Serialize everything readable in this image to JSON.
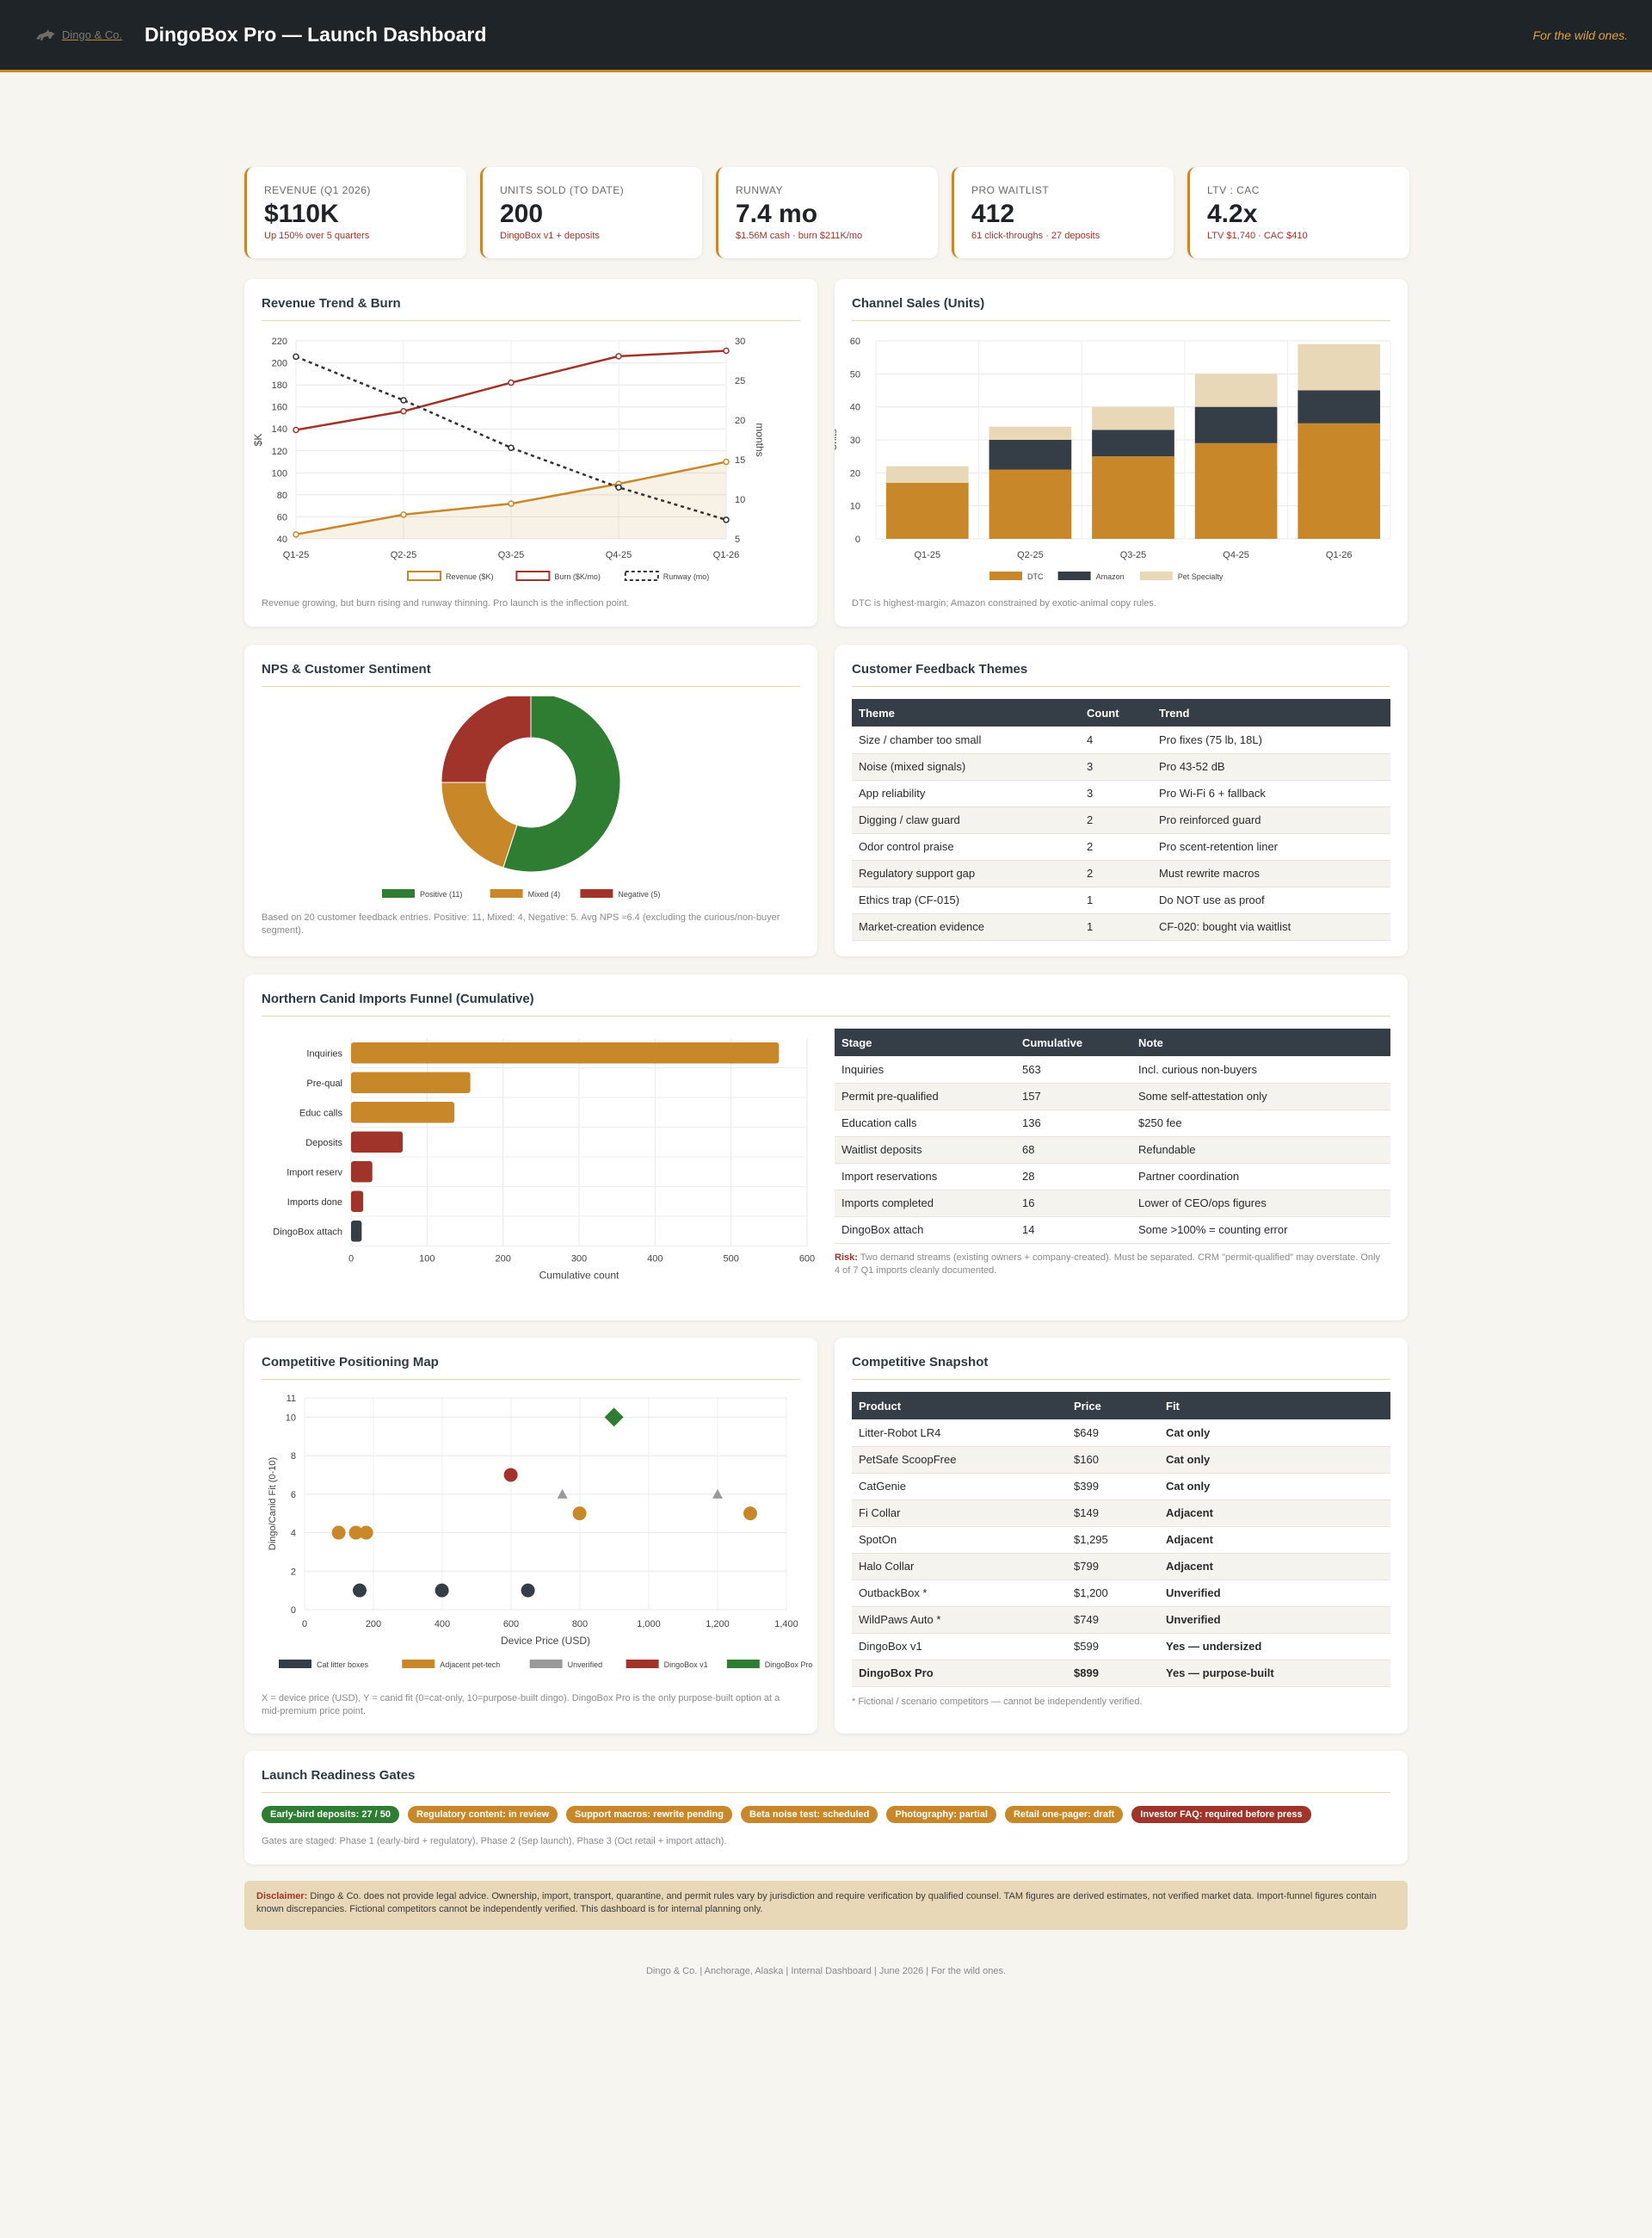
{
  "header": {
    "brand": "Dingo & Co.",
    "title": "DingoBox Pro — Launch Dashboard",
    "tagline": "For the wild ones."
  },
  "kpis": [
    {
      "label": "Revenue (Q1 2026)",
      "value": "$110K",
      "sub": "Up 150% over 5 quarters"
    },
    {
      "label": "Units Sold (to date)",
      "value": "200",
      "sub": "DingoBox v1 + deposits"
    },
    {
      "label": "Runway",
      "value": "7.4 mo",
      "sub": "$1.56M cash · burn $211K/mo"
    },
    {
      "label": "Pro Waitlist",
      "value": "412",
      "sub": "61 click-throughs · 27 deposits"
    },
    {
      "label": "LTV : CAC",
      "value": "4.2x",
      "sub": "LTV $1,740 · CAC $410"
    }
  ],
  "revenue_card": {
    "title": "Revenue Trend & Burn",
    "caption": "Revenue growing, but burn rising and runway thinning. Pro launch is the inflection point."
  },
  "channel_card": {
    "title": "Channel Sales (Units)",
    "caption": "DTC is highest-margin; Amazon constrained by exotic-animal copy rules."
  },
  "nps_card": {
    "title": "NPS & Customer Sentiment",
    "caption": "Based on 20 customer feedback entries. Positive: 11, Mixed: 4, Negative: 5. Avg NPS ≈6.4 (excluding the curious/non-buyer segment)."
  },
  "themes_card": {
    "title": "Customer Feedback Themes",
    "headers": [
      "Theme",
      "Count",
      "Trend"
    ],
    "rows": [
      [
        "Size / chamber too small",
        "4",
        "Pro fixes (75 lb, 18L)"
      ],
      [
        "Noise (mixed signals)",
        "3",
        "Pro 43-52 dB"
      ],
      [
        "App reliability",
        "3",
        "Pro Wi-Fi 6 + fallback"
      ],
      [
        "Digging / claw guard",
        "2",
        "Pro reinforced guard"
      ],
      [
        "Odor control praise",
        "2",
        "Pro scent-retention liner"
      ],
      [
        "Regulatory support gap",
        "2",
        "Must rewrite macros"
      ],
      [
        "Ethics trap (CF-015)",
        "1",
        "Do NOT use as proof"
      ],
      [
        "Market-creation evidence",
        "1",
        "CF-020: bought via waitlist"
      ]
    ]
  },
  "funnel_card": {
    "title": "Northern Canid Imports Funnel (Cumulative)",
    "headers": [
      "Stage",
      "Cumulative",
      "Note"
    ],
    "rows": [
      [
        "Inquiries",
        "563",
        "Incl. curious non-buyers"
      ],
      [
        "Permit pre-qualified",
        "157",
        "Some self-attestation only"
      ],
      [
        "Education calls",
        "136",
        "$250 fee"
      ],
      [
        "Waitlist deposits",
        "68",
        "Refundable"
      ],
      [
        "Import reservations",
        "28",
        "Partner coordination"
      ],
      [
        "Imports completed",
        "16",
        "Lower of CEO/ops figures"
      ],
      [
        "DingoBox attach",
        "14",
        "Some >100% = counting error"
      ]
    ],
    "risk_label": "Risk:",
    "risk_text": "Two demand streams (existing owners + company-created). Must be separated. CRM \"permit-qualified\" may overstate. Only 4 of 7 Q1 imports cleanly documented."
  },
  "map_card": {
    "title": "Competitive Positioning Map",
    "caption": "X = device price (USD), Y = canid fit (0=cat-only, 10=purpose-built dingo). DingoBox Pro is the only purpose-built option at a mid-premium price point."
  },
  "snapshot_card": {
    "title": "Competitive Snapshot",
    "headers": [
      "Product",
      "Price",
      "Fit"
    ],
    "rows": [
      {
        "product": "Litter-Robot LR4",
        "price": "$649",
        "fit": "Cat only",
        "cls": "fit-red"
      },
      {
        "product": "PetSafe ScoopFree",
        "price": "$160",
        "fit": "Cat only",
        "cls": "fit-red"
      },
      {
        "product": "CatGenie",
        "price": "$399",
        "fit": "Cat only",
        "cls": "fit-red"
      },
      {
        "product": "Fi Collar",
        "price": "$149",
        "fit": "Adjacent",
        "cls": "fit-or"
      },
      {
        "product": "SpotOn",
        "price": "$1,295",
        "fit": "Adjacent",
        "cls": "fit-or"
      },
      {
        "product": "Halo Collar",
        "price": "$799",
        "fit": "Adjacent",
        "cls": "fit-or"
      },
      {
        "product": "OutbackBox *",
        "price": "$1,200",
        "fit": "Unverified",
        "cls": "fit-or"
      },
      {
        "product": "WildPaws Auto *",
        "price": "$749",
        "fit": "Unverified",
        "cls": "fit-or"
      },
      {
        "product": "DingoBox v1",
        "price": "$599",
        "fit": "Yes — undersized",
        "cls": "fit-gr"
      },
      {
        "product": "DingoBox Pro",
        "price": "$899",
        "fit": "Yes — purpose-built",
        "cls": "fit-gr",
        "bold": true
      }
    ],
    "footnote": "* Fictional / scenario competitors — cannot be independently verified."
  },
  "gates_card": {
    "title": "Launch Readiness Gates",
    "pills": [
      {
        "text": "Early-bird deposits: 27 / 50",
        "color": "#2e7d32"
      },
      {
        "text": "Regulatory content: in review",
        "color": "#c8882a"
      },
      {
        "text": "Support macros: rewrite pending",
        "color": "#c8882a"
      },
      {
        "text": "Beta noise test: scheduled",
        "color": "#c8882a"
      },
      {
        "text": "Photography: partial",
        "color": "#c8882a"
      },
      {
        "text": "Retail one-pager: draft",
        "color": "#c8882a"
      },
      {
        "text": "Investor FAQ: required before press",
        "color": "#a0342a"
      }
    ],
    "caption": "Gates are staged: Phase 1 (early-bird + regulatory), Phase 2 (Sep launch), Phase 3 (Oct retail + import attach)."
  },
  "disclaimer": {
    "label": "Disclaimer:",
    "text": "Dingo & Co. does not provide legal advice. Ownership, import, transport, quarantine, and permit rules vary by jurisdiction and require verification by qualified counsel. TAM figures are derived estimates, not verified market data. Import-funnel figures contain known discrepancies. Fictional competitors cannot be independently verified. This dashboard is for internal planning only."
  },
  "footer": "Dingo & Co. | Anchorage, Alaska | Internal Dashboard | June 2026 | For the wild ones.",
  "colors": {
    "accent": "#c8882a",
    "red": "#a0342a",
    "dark": "#353e47",
    "beige": "#e8d8b8",
    "green": "#2e7d32",
    "gray": "#999999"
  },
  "chart_data": [
    {
      "type": "line",
      "categories": [
        "Q1-25",
        "Q2-25",
        "Q3-25",
        "Q4-25",
        "Q1-26"
      ],
      "ylabel": "$K",
      "y2label": "months",
      "ylim": [
        40,
        220
      ],
      "y2lim": [
        5,
        30
      ],
      "series": [
        {
          "name": "Revenue ($K)",
          "values": [
            44,
            62,
            72,
            90,
            110
          ],
          "axis": "left",
          "color": "#c8882a"
        },
        {
          "name": "Burn ($K/mo)",
          "values": [
            139,
            156,
            182,
            206,
            211
          ],
          "axis": "left",
          "color": "#a0342a"
        },
        {
          "name": "Runway (mo)",
          "values": [
            28,
            22.5,
            16.5,
            11.5,
            7.4
          ],
          "axis": "right",
          "color": "#333333",
          "dashed": true
        }
      ]
    },
    {
      "type": "bar",
      "stacked": true,
      "categories": [
        "Q1-25",
        "Q2-25",
        "Q3-25",
        "Q4-25",
        "Q1-26"
      ],
      "ylabel": "Units",
      "ylim": [
        0,
        60
      ],
      "series": [
        {
          "name": "DTC",
          "values": [
            17,
            21,
            25,
            29,
            35
          ],
          "color": "#c8882a"
        },
        {
          "name": "Amazon",
          "values": [
            0,
            9,
            8,
            11,
            10
          ],
          "color": "#353e47"
        },
        {
          "name": "Pet Specialty",
          "values": [
            5,
            4,
            7,
            10,
            14
          ],
          "color": "#e8d8b8"
        }
      ]
    },
    {
      "type": "pie",
      "donut": true,
      "labels": [
        "Positive (11)",
        "Mixed (4)",
        "Negative (5)"
      ],
      "values": [
        11,
        4,
        5
      ],
      "colors": [
        "#2e7d32",
        "#c8882a",
        "#a0342a"
      ]
    },
    {
      "type": "bar",
      "orientation": "horizontal",
      "categories": [
        "Inquiries",
        "Pre-qual",
        "Educ calls",
        "Deposits",
        "Import reserv",
        "Imports done",
        "DingoBox attach"
      ],
      "values": [
        563,
        157,
        136,
        68,
        28,
        16,
        14
      ],
      "colors": [
        "#c8882a",
        "#c8882a",
        "#c8882a",
        "#a0342a",
        "#a0342a",
        "#a0342a",
        "#353e47"
      ],
      "xlabel": "Cumulative count",
      "xlim": [
        0,
        600
      ]
    },
    {
      "type": "scatter",
      "xlabel": "Device Price (USD)",
      "ylabel": "Dingo/Canid Fit (0-10)",
      "xlim": [
        0,
        1400
      ],
      "ylim": [
        0,
        11
      ],
      "series": [
        {
          "name": "Cat litter boxes",
          "color": "#353e47",
          "shape": "circle",
          "points": [
            [
              160,
              1
            ],
            [
              399,
              1
            ],
            [
              649,
              1
            ]
          ]
        },
        {
          "name": "Adjacent pet-tech",
          "color": "#c8882a",
          "shape": "circle",
          "points": [
            [
              99,
              4
            ],
            [
              149,
              4
            ],
            [
              179,
              4
            ],
            [
              799,
              5
            ],
            [
              1295,
              5
            ]
          ]
        },
        {
          "name": "Unverified",
          "color": "#999999",
          "shape": "triangle",
          "points": [
            [
              749,
              6
            ],
            [
              1200,
              6
            ]
          ]
        },
        {
          "name": "DingoBox v1",
          "color": "#a0342a",
          "shape": "circle",
          "points": [
            [
              599,
              7
            ]
          ]
        },
        {
          "name": "DingoBox Pro",
          "color": "#2e7d32",
          "shape": "diamond",
          "points": [
            [
              899,
              10
            ]
          ]
        }
      ]
    }
  ]
}
